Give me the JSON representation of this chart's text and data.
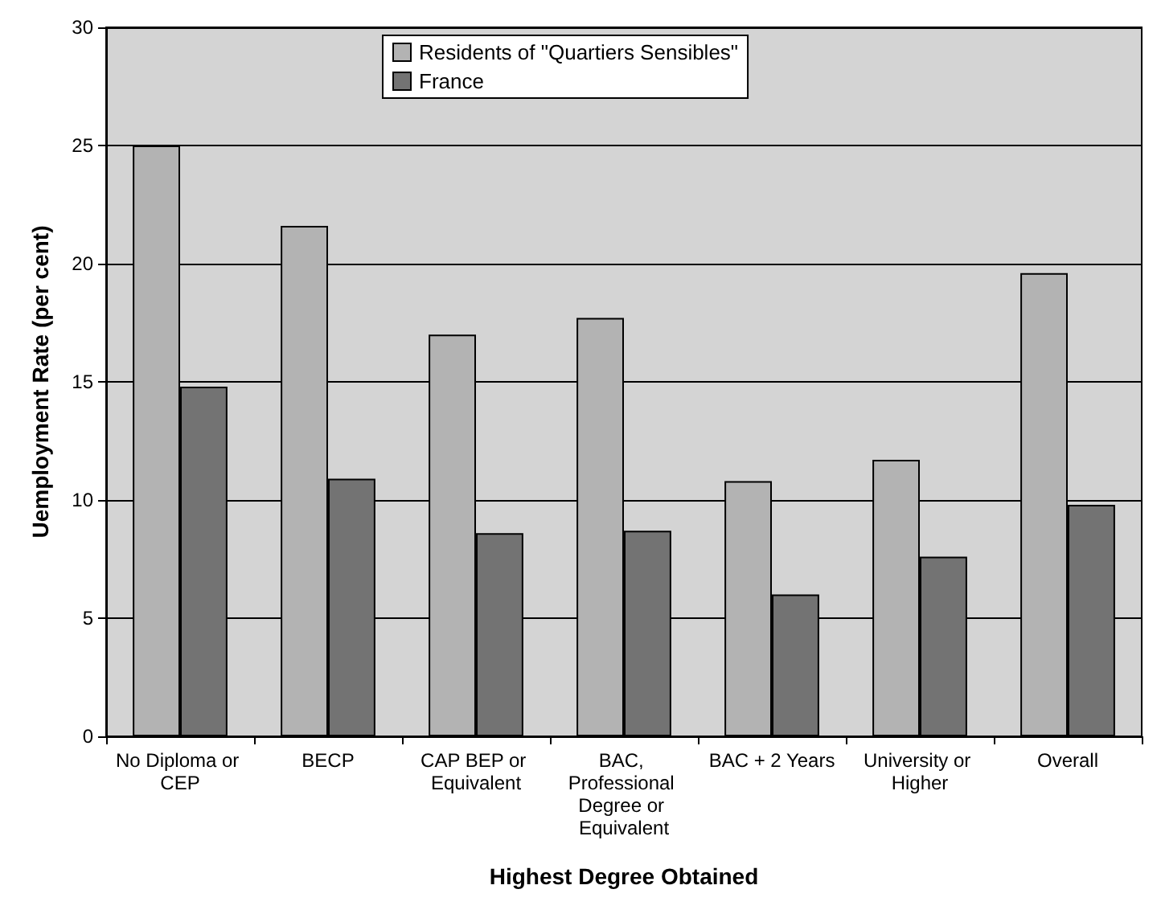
{
  "chart_data": {
    "type": "bar",
    "xlabel": "Highest Degree Obtained",
    "ylabel": "Uemployment Rate (per cent)",
    "categories": [
      "No Diploma or CEP",
      "BECP",
      "CAP BEP or Equivalent",
      "BAC, Professional Degree or Equivalent",
      "BAC + 2 Years",
      "University or Higher",
      "Overall"
    ],
    "series": [
      {
        "name": "Residents of \"Quartiers Sensibles\"",
        "color": "#b3b3b3",
        "values": [
          25,
          21.6,
          17,
          17.7,
          10.8,
          11.7,
          19.6
        ]
      },
      {
        "name": "France",
        "color": "#737373",
        "values": [
          14.8,
          10.9,
          8.6,
          8.7,
          6,
          7.6,
          9.8
        ]
      }
    ],
    "ylim": [
      0,
      30
    ],
    "yticks": [
      0,
      5,
      10,
      15,
      20,
      25,
      30
    ],
    "grid": "y",
    "legend": "top"
  }
}
